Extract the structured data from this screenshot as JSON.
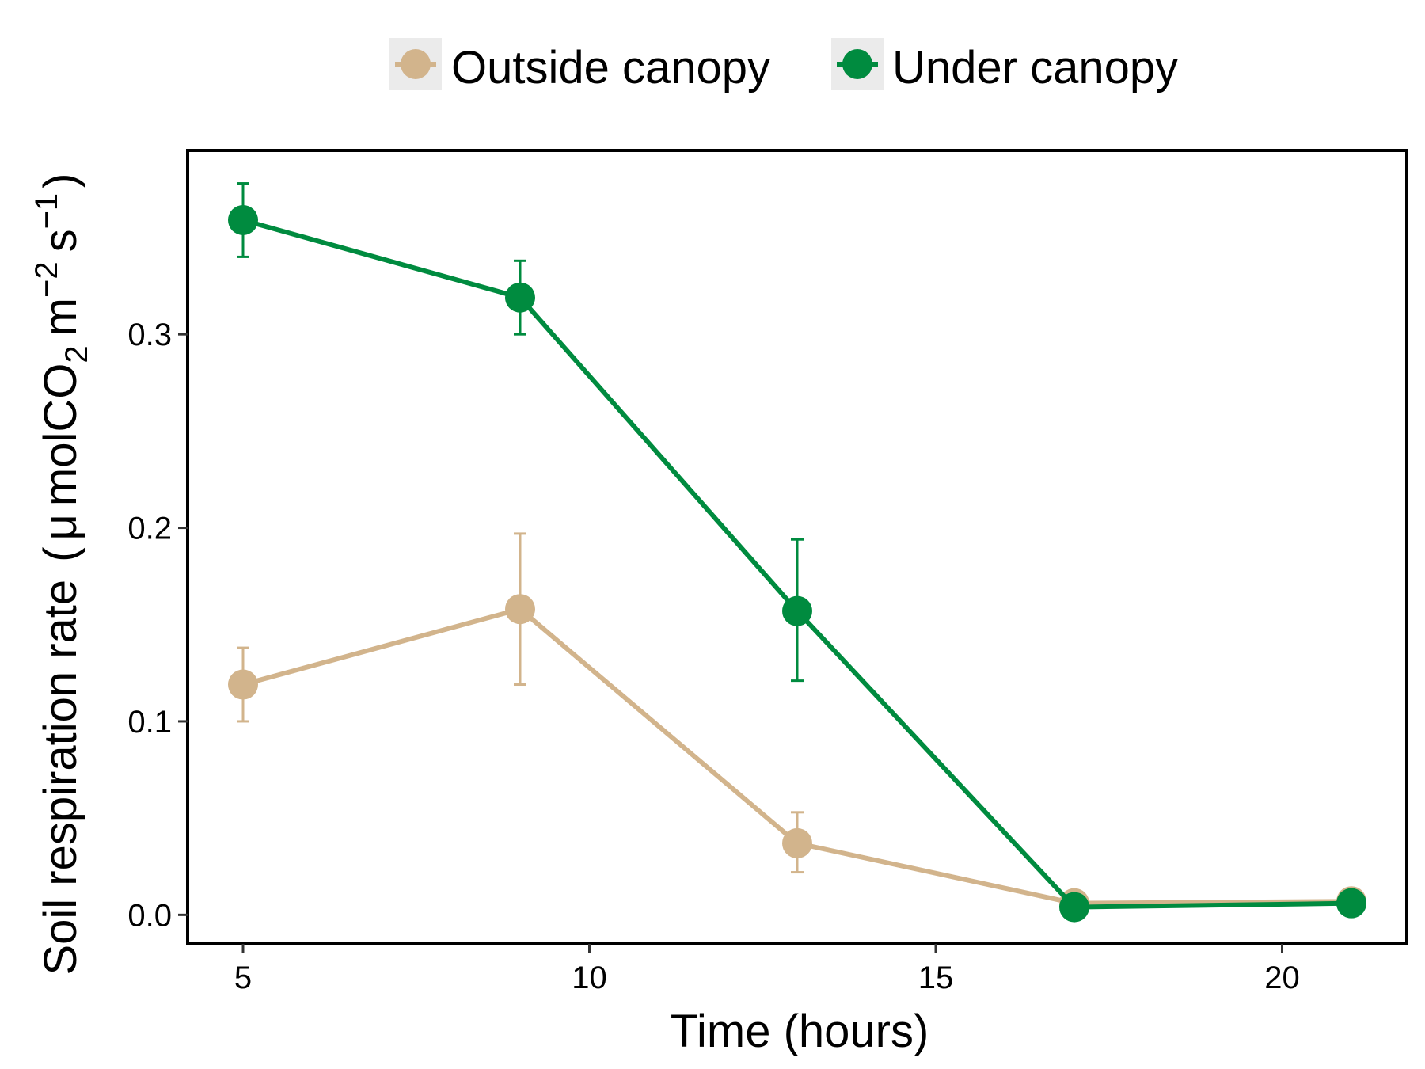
{
  "chart_data": {
    "type": "line",
    "title": "",
    "xlabel": "Time (hours)",
    "ylabel": {
      "main": "Soil respiration rate",
      "unit_mu": "μ",
      "unit_mol": "molCO",
      "unit_sub": "2",
      "unit_m": "m",
      "unit_m_exp": "−2",
      "unit_s": "s",
      "unit_s_exp": "−1"
    },
    "xlim": [
      4.2,
      21.8
    ],
    "ylim": [
      -0.015,
      0.395
    ],
    "xticks": [
      5,
      10,
      15,
      20
    ],
    "yticks": [
      0.0,
      0.1,
      0.2,
      0.3
    ],
    "xtick_labels": [
      "5",
      "10",
      "15",
      "20"
    ],
    "ytick_labels": [
      "0.0",
      "0.1",
      "0.2",
      "0.3"
    ],
    "legend_position": "top",
    "grid": false,
    "series": [
      {
        "name": "Outside canopy",
        "color": "#d2b48c",
        "x": [
          5,
          9,
          13,
          17,
          21
        ],
        "y": [
          0.119,
          0.158,
          0.037,
          0.006,
          0.007
        ],
        "err_low": [
          0.1,
          0.119,
          0.022,
          0.006,
          0.007
        ],
        "err_high": [
          0.138,
          0.197,
          0.053,
          0.006,
          0.007
        ]
      },
      {
        "name": "Under canopy",
        "color": "#008b3f",
        "x": [
          5,
          9,
          13,
          17,
          21
        ],
        "y": [
          0.359,
          0.319,
          0.157,
          0.004,
          0.006
        ],
        "err_low": [
          0.34,
          0.3,
          0.121,
          0.004,
          0.006
        ],
        "err_high": [
          0.378,
          0.338,
          0.194,
          0.004,
          0.006
        ]
      }
    ]
  }
}
